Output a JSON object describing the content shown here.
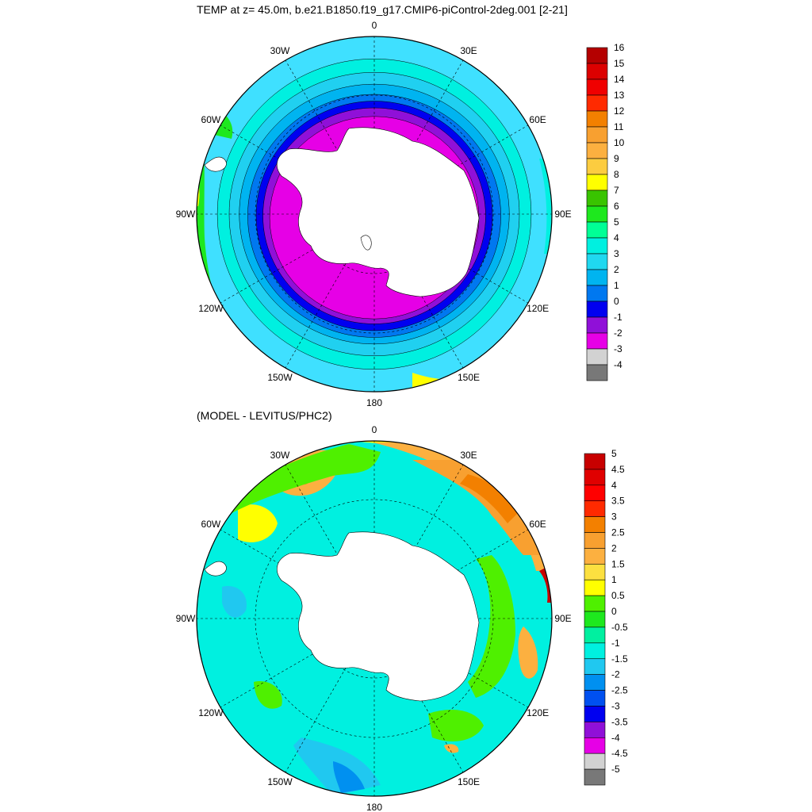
{
  "top": {
    "title": "TEMP at z=  45.0m, b.e21.B1850.f19_g17.CMIP6-piControl-2deg.001 [2-21]",
    "lon_labels": [
      "0",
      "30E",
      "60E",
      "90E",
      "120E",
      "150E",
      "180",
      "150W",
      "120W",
      "90W",
      "60W",
      "30W"
    ],
    "colorbar": {
      "labels": [
        "16",
        "15",
        "14",
        "13",
        "12",
        "11",
        "10",
        "9",
        "8",
        "7",
        "6",
        "5",
        "4",
        "3",
        "2",
        "1",
        "0",
        "-1",
        "-2",
        "-3",
        "-4"
      ],
      "colors": [
        "#b40000",
        "#dc0000",
        "#f00000",
        "#ff2a00",
        "#f38000",
        "#f8a030",
        "#fcb040",
        "#fccc40",
        "#ffff00",
        "#39c400",
        "#1ee81e",
        "#00ff96",
        "#00f0e0",
        "#20d8f0",
        "#00b4f0",
        "#0078f0",
        "#0000f0",
        "#9010d8",
        "#e600e6",
        "#d2d2d2",
        "#787878"
      ]
    },
    "rings": [
      {
        "color": "#3fe0ff",
        "rx": 1.0,
        "ry": 1.0,
        "cx": 0,
        "cy": 0
      },
      {
        "color": "#00f0e0",
        "rx": 0.93,
        "ry": 0.92,
        "cx": 0,
        "cy": 0
      },
      {
        "color": "#20d0f0",
        "rx": 0.86,
        "ry": 0.84,
        "cx": 0,
        "cy": 0
      },
      {
        "color": "#00b4f0",
        "rx": 0.8,
        "ry": 0.77,
        "cx": 0,
        "cy": 0
      },
      {
        "color": "#0078f0",
        "rx": 0.75,
        "ry": 0.72,
        "cx": 0,
        "cy": 0.01
      },
      {
        "color": "#0000f0",
        "rx": 0.7,
        "ry": 0.68,
        "cx": 0,
        "cy": 0.01
      },
      {
        "color": "#9010d8",
        "rx": 0.66,
        "ry": 0.64,
        "cx": 0,
        "cy": 0.01
      },
      {
        "color": "#e600e6",
        "rx": 0.62,
        "ry": 0.6,
        "cx": 0,
        "cy": 0.02
      }
    ]
  },
  "bottom": {
    "title": "(MODEL - LEVITUS/PHC2)",
    "lon_labels": [
      "0",
      "30E",
      "60E",
      "90E",
      "120E",
      "150E",
      "180",
      "150W",
      "120W",
      "90W",
      "60W",
      "30W"
    ],
    "colorbar": {
      "labels": [
        "5",
        "4.5",
        "4",
        "3.5",
        "3",
        "2.5",
        "2",
        "1.5",
        "1",
        "0.5",
        "0",
        "-0.5",
        "-1",
        "-1.5",
        "-2",
        "-2.5",
        "-3",
        "-3.5",
        "-4",
        "-4.5",
        "-5"
      ],
      "colors": [
        "#c80000",
        "#e00000",
        "#ff0000",
        "#ff2a00",
        "#f38000",
        "#f8a030",
        "#fcb040",
        "#fce040",
        "#ffff00",
        "#4ff000",
        "#1ee81e",
        "#00f0a0",
        "#00f0e0",
        "#20c8f0",
        "#0090f0",
        "#0050f0",
        "#0000f0",
        "#9010d8",
        "#e600e6",
        "#d2d2d2",
        "#787878"
      ]
    }
  }
}
